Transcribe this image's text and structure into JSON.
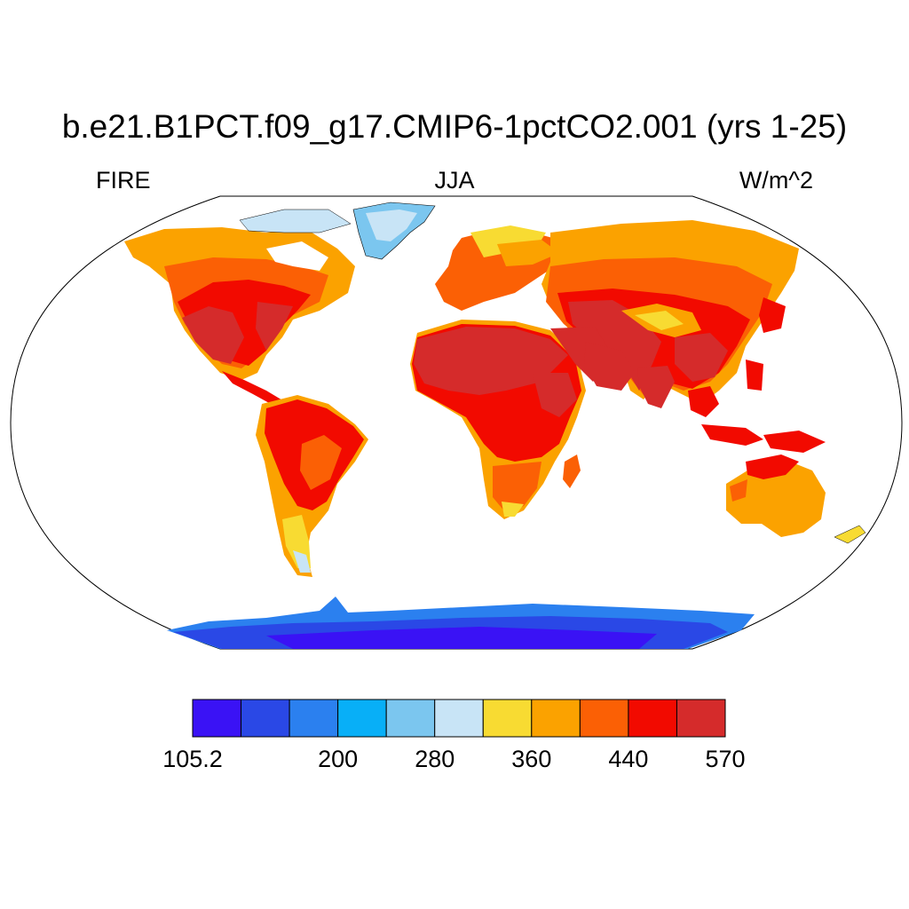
{
  "title": "b.e21.B1PCT.f09_g17.CMIP6-1pctCO2.001 (yrs 1-25)",
  "subtitle_left": "FIRE",
  "subtitle_center": "JJA",
  "subtitle_right": "W/m^2",
  "colorbar": {
    "colors": [
      "#3a12f5",
      "#2a48e6",
      "#2b80ef",
      "#08aff7",
      "#7bc6ef",
      "#c8e4f6",
      "#f8db32",
      "#fba200",
      "#fb6005",
      "#f20a00",
      "#d52b2b"
    ],
    "labels": [
      {
        "text": "105.2",
        "boundary": 0
      },
      {
        "text": "200",
        "boundary": 3
      },
      {
        "text": "280",
        "boundary": 5
      },
      {
        "text": "360",
        "boundary": 7
      },
      {
        "text": "440",
        "boundary": 9
      },
      {
        "text": "570",
        "boundary": 11
      }
    ]
  }
}
